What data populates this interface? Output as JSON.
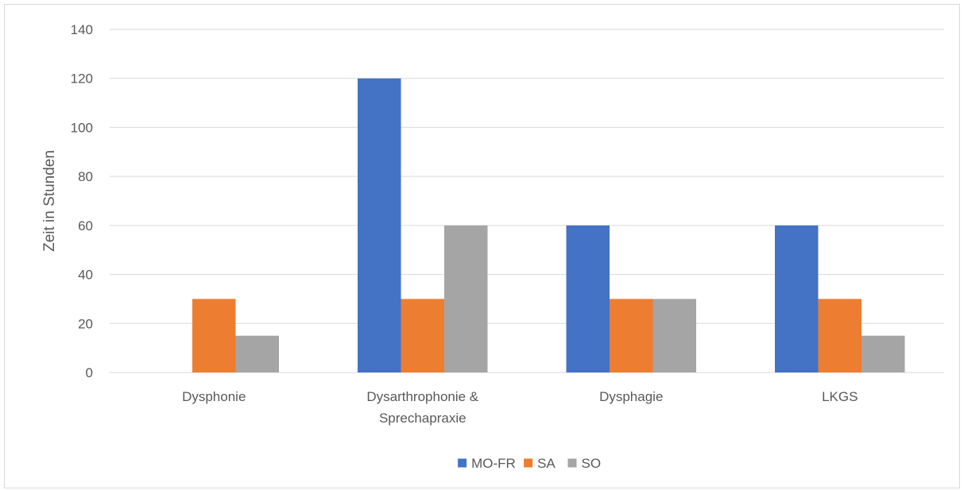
{
  "chart_data": {
    "type": "bar",
    "title": "",
    "xlabel": "",
    "ylabel": "Zeit in Stunden",
    "ylim": [
      0,
      140
    ],
    "yticks": [
      0,
      20,
      40,
      60,
      80,
      100,
      120,
      140
    ],
    "grid": true,
    "legend_position": "bottom",
    "categories": [
      [
        "Dysphonie"
      ],
      [
        "Dysarthrophonie &",
        "Sprechapraxie"
      ],
      [
        "Dysphagie"
      ],
      [
        "LKGS"
      ]
    ],
    "series": [
      {
        "name": "MO-FR",
        "color": "#4472c4",
        "values": [
          0,
          120,
          60,
          60
        ]
      },
      {
        "name": "SA",
        "color": "#ed7d31",
        "values": [
          30,
          30,
          30,
          30
        ]
      },
      {
        "name": "SO",
        "color": "#a5a5a5",
        "values": [
          15,
          60,
          30,
          15
        ]
      }
    ]
  }
}
